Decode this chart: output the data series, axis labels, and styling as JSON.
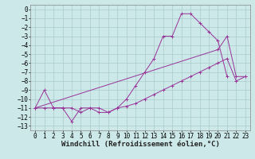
{
  "background_color": "#cce8e8",
  "grid_color": "#aacccc",
  "line_color": "#993399",
  "xlabel": "Windchill (Refroidissement éolien,°C)",
  "xlabel_fontsize": 6.5,
  "xlim": [
    -0.5,
    23.5
  ],
  "ylim": [
    -13.5,
    0.5
  ],
  "xticks": [
    0,
    1,
    2,
    3,
    4,
    5,
    6,
    7,
    8,
    9,
    10,
    11,
    12,
    13,
    14,
    15,
    16,
    17,
    18,
    19,
    20,
    21,
    22,
    23
  ],
  "yticks": [
    0,
    -1,
    -2,
    -3,
    -4,
    -5,
    -6,
    -7,
    -8,
    -9,
    -10,
    -11,
    -12,
    -13
  ],
  "tick_fontsize": 5.5,
  "series": [
    {
      "x": [
        0,
        1,
        2,
        3,
        4,
        5,
        6,
        7,
        8,
        9,
        10,
        11,
        12,
        13,
        14,
        15,
        16,
        17,
        18,
        19,
        20,
        21
      ],
      "y": [
        -11,
        -9,
        -11,
        -11,
        -12.5,
        -11,
        -11,
        -11.5,
        -11.5,
        -11,
        -10,
        -8.5,
        -7,
        -5.5,
        -3,
        -3,
        -0.5,
        -0.5,
        -1.5,
        -2.5,
        -3.5,
        -7.5
      ]
    },
    {
      "x": [
        0,
        1,
        2,
        3,
        4,
        5,
        6,
        7,
        8,
        9,
        10,
        11,
        12,
        13,
        14,
        15,
        16,
        17,
        18,
        19,
        20,
        21,
        22,
        23
      ],
      "y": [
        -11,
        -11,
        -11,
        -11,
        -11,
        -11.5,
        -11,
        -11,
        -11.5,
        -11,
        -10.8,
        -10.5,
        -10,
        -9.5,
        -9,
        -8.5,
        -8,
        -7.5,
        -7.0,
        -6.5,
        -6.0,
        -5.5,
        -8.0,
        -7.5
      ]
    },
    {
      "x": [
        0,
        20,
        21,
        22,
        23
      ],
      "y": [
        -11,
        -4.5,
        -3.0,
        -7.5,
        -7.5
      ]
    }
  ]
}
